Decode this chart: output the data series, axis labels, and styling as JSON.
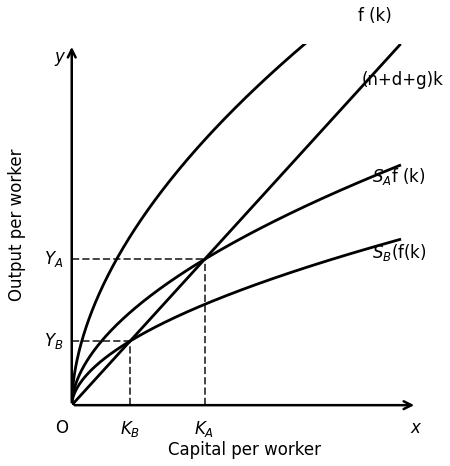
{
  "xlabel": "Capital per worker",
  "ylabel": "Output per worker",
  "axis_label_x": "x",
  "axis_label_y": "y",
  "origin_label": "O",
  "background_color": "#ffffff",
  "line_color": "#000000",
  "dashed_color": "#444444",
  "xlim": [
    0,
    10.0
  ],
  "ylim": [
    0,
    10.0
  ],
  "alpha": 0.55,
  "alpha_sA": 0.55,
  "alpha_sB": 0.38,
  "scale": 3.5,
  "n_coeff": 1.05,
  "fontsize_curve_label": 12,
  "fontsize_axis_label": 12,
  "fontsize_tick_label": 12,
  "lw": 2.0,
  "dash_lw": 1.4
}
